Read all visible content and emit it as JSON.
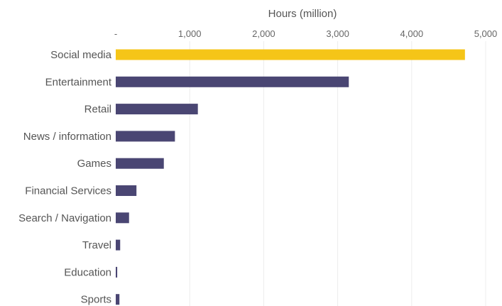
{
  "chart_data": {
    "type": "bar",
    "orientation": "horizontal",
    "xlabel": "Hours (million)",
    "x_axis_position": "top",
    "xlim": [
      0,
      5000
    ],
    "x_ticks": [
      0,
      1000,
      2000,
      3000,
      4000,
      5000
    ],
    "x_tick_labels": [
      "-",
      "1,000",
      "2,000",
      "3,000",
      "4,000",
      "5,000"
    ],
    "grid": true,
    "categories": [
      "Social media",
      "Entertainment",
      "Retail",
      "News / information",
      "Games",
      "Financial Services",
      "Search / Navigation",
      "Travel",
      "Education",
      "Sports"
    ],
    "values": [
      4720,
      3150,
      1110,
      800,
      650,
      280,
      180,
      60,
      20,
      50
    ],
    "highlight_index": 0,
    "colors": {
      "highlight": "#f5c518",
      "default": "#4a4673"
    }
  }
}
